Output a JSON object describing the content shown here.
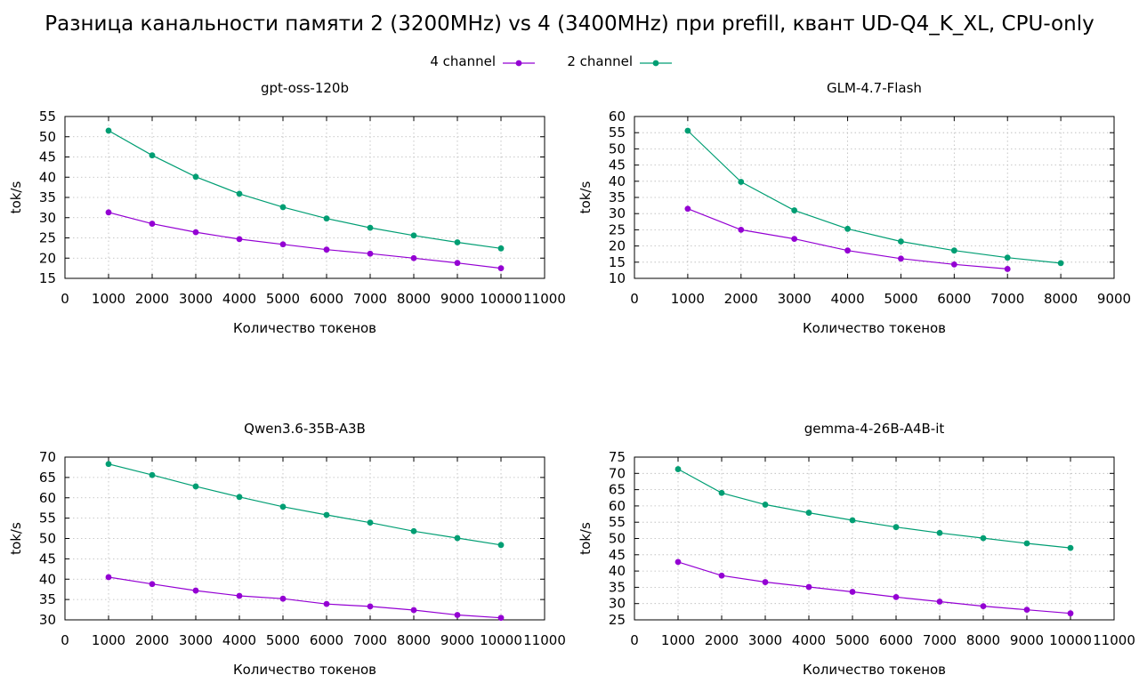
{
  "title": "Разница канальности памяти 2 (3200MHz) vs 4 (3400MHz) при prefill, квант UD-Q4_K_XL, CPU-only",
  "legend": [
    {
      "name": "4 channel",
      "color": "#9400d3"
    },
    {
      "name": "2 channel",
      "color": "#009e73"
    }
  ],
  "chart_data": [
    {
      "type": "line",
      "title": "gpt-oss-120b",
      "xlabel": "Количество токенов",
      "ylabel": "tok/s",
      "xlim": [
        0,
        11000
      ],
      "xticks": [
        0,
        1000,
        2000,
        3000,
        4000,
        5000,
        6000,
        7000,
        8000,
        9000,
        10000,
        11000
      ],
      "ylim": [
        15,
        55
      ],
      "yticks": [
        15,
        20,
        25,
        30,
        35,
        40,
        45,
        50,
        55
      ],
      "grid": true,
      "series": [
        {
          "name": "4 channel",
          "color": "#9400d3",
          "x": [
            1000,
            2000,
            3000,
            4000,
            5000,
            6000,
            7000,
            8000,
            9000,
            10000
          ],
          "y": [
            31.3,
            28.5,
            26.4,
            24.7,
            23.4,
            22.1,
            21.1,
            20.0,
            18.8,
            17.5
          ]
        },
        {
          "name": "2 channel",
          "color": "#009e73",
          "x": [
            1000,
            2000,
            3000,
            4000,
            5000,
            6000,
            7000,
            8000,
            9000,
            10000
          ],
          "y": [
            51.5,
            45.4,
            40.1,
            35.9,
            32.6,
            29.8,
            27.5,
            25.6,
            23.9,
            22.4
          ]
        }
      ]
    },
    {
      "type": "line",
      "title": "GLM-4.7-Flash",
      "xlabel": "Количество токенов",
      "ylabel": "tok/s",
      "xlim": [
        0,
        9000
      ],
      "xticks": [
        0,
        1000,
        2000,
        3000,
        4000,
        5000,
        6000,
        7000,
        8000,
        9000
      ],
      "ylim": [
        10,
        60
      ],
      "yticks": [
        10,
        15,
        20,
        25,
        30,
        35,
        40,
        45,
        50,
        55,
        60
      ],
      "grid": true,
      "series": [
        {
          "name": "4 channel",
          "color": "#9400d3",
          "x": [
            1000,
            2000,
            3000,
            4000,
            5000,
            6000,
            7000
          ],
          "y": [
            31.5,
            25.0,
            22.2,
            18.6,
            16.1,
            14.3,
            12.9
          ]
        },
        {
          "name": "2 channel",
          "color": "#009e73",
          "x": [
            1000,
            2000,
            3000,
            4000,
            5000,
            6000,
            7000,
            8000
          ],
          "y": [
            55.6,
            39.8,
            31.0,
            25.3,
            21.4,
            18.6,
            16.4,
            14.7
          ]
        }
      ]
    },
    {
      "type": "line",
      "title": "Qwen3.6-35B-A3B",
      "xlabel": "Количество токенов",
      "ylabel": "tok/s",
      "xlim": [
        0,
        11000
      ],
      "xticks": [
        0,
        1000,
        2000,
        3000,
        4000,
        5000,
        6000,
        7000,
        8000,
        9000,
        10000,
        11000
      ],
      "ylim": [
        30,
        70
      ],
      "yticks": [
        30,
        35,
        40,
        45,
        50,
        55,
        60,
        65,
        70
      ],
      "grid": true,
      "series": [
        {
          "name": "4 channel",
          "color": "#9400d3",
          "x": [
            1000,
            2000,
            3000,
            4000,
            5000,
            6000,
            7000,
            8000,
            9000,
            10000
          ],
          "y": [
            40.5,
            38.8,
            37.2,
            35.9,
            35.2,
            33.9,
            33.3,
            32.4,
            31.2,
            30.5
          ]
        },
        {
          "name": "2 channel",
          "color": "#009e73",
          "x": [
            1000,
            2000,
            3000,
            4000,
            5000,
            6000,
            7000,
            8000,
            9000,
            10000
          ],
          "y": [
            68.3,
            65.6,
            62.8,
            60.2,
            57.8,
            55.8,
            53.9,
            51.8,
            50.1,
            48.4
          ]
        }
      ]
    },
    {
      "type": "line",
      "title": "gemma-4-26B-A4B-it",
      "xlabel": "Количество токенов",
      "ylabel": "tok/s",
      "xlim": [
        0,
        11000
      ],
      "xticks": [
        0,
        1000,
        2000,
        3000,
        4000,
        5000,
        6000,
        7000,
        8000,
        9000,
        10000,
        11000
      ],
      "ylim": [
        25,
        75
      ],
      "yticks": [
        25,
        30,
        35,
        40,
        45,
        50,
        55,
        60,
        65,
        70,
        75
      ],
      "grid": true,
      "series": [
        {
          "name": "4 channel",
          "color": "#9400d3",
          "x": [
            1000,
            2000,
            3000,
            4000,
            5000,
            6000,
            7000,
            8000,
            9000,
            10000
          ],
          "y": [
            42.8,
            38.6,
            36.6,
            35.1,
            33.6,
            32.0,
            30.6,
            29.2,
            28.1,
            27.0
          ]
        },
        {
          "name": "2 channel",
          "color": "#009e73",
          "x": [
            1000,
            2000,
            3000,
            4000,
            5000,
            6000,
            7000,
            8000,
            9000,
            10000
          ],
          "y": [
            71.3,
            64.0,
            60.4,
            57.9,
            55.6,
            53.5,
            51.7,
            50.1,
            48.5,
            47.1
          ]
        }
      ]
    }
  ]
}
